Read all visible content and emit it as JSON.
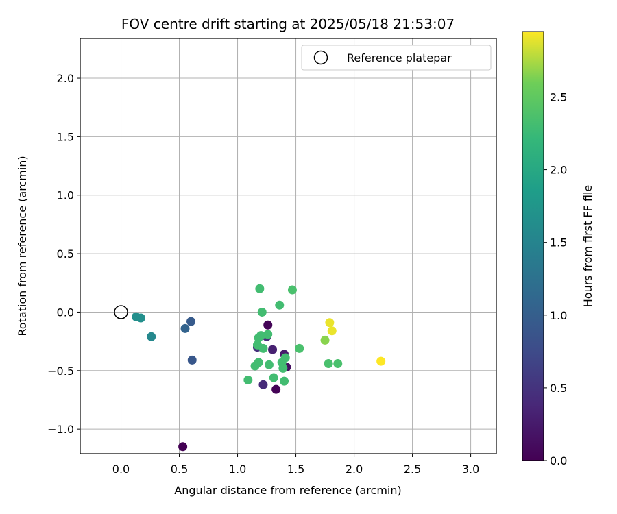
{
  "chart_data": {
    "type": "scatter",
    "title": "FOV centre drift starting at 2025/05/18 21:53:07",
    "xlabel": "Angular distance from reference (arcmin)",
    "ylabel": "Rotation from reference (arcmin)",
    "xlim": [
      -0.35,
      3.22
    ],
    "ylim": [
      -1.21,
      2.34
    ],
    "xticks": [
      0.0,
      0.5,
      1.0,
      1.5,
      2.0,
      2.5,
      3.0
    ],
    "yticks": [
      -1.0,
      -0.5,
      0.0,
      0.5,
      1.0,
      1.5,
      2.0
    ],
    "xtick_labels": [
      "0.0",
      "0.5",
      "1.0",
      "1.5",
      "2.0",
      "2.5",
      "3.0"
    ],
    "ytick_labels": [
      "−1.0",
      "−0.5",
      "0.0",
      "0.5",
      "1.0",
      "1.5",
      "2.0"
    ],
    "grid": true,
    "legend": {
      "position": "top-right",
      "entries": [
        {
          "label": "Reference platepar",
          "marker": "open-circle",
          "x": 0.0,
          "y": 0.0
        }
      ]
    },
    "colorbar": {
      "label": "Hours from first FF file",
      "range": [
        0.0,
        2.95
      ],
      "ticks": [
        0.0,
        0.5,
        1.0,
        1.5,
        2.0,
        2.5
      ],
      "tick_labels": [
        "0.0",
        "0.5",
        "1.0",
        "1.5",
        "2.0",
        "2.5"
      ],
      "colormap": "viridis"
    },
    "points": [
      {
        "x": 0.53,
        "y": -1.15,
        "hours": 0.0
      },
      {
        "x": 1.33,
        "y": -0.66,
        "hours": 0.02
      },
      {
        "x": 1.26,
        "y": -0.11,
        "hours": 0.03
      },
      {
        "x": 1.42,
        "y": -0.47,
        "hours": 0.12
      },
      {
        "x": 1.4,
        "y": -0.36,
        "hours": 0.25
      },
      {
        "x": 1.3,
        "y": -0.32,
        "hours": 0.3
      },
      {
        "x": 1.25,
        "y": -0.21,
        "hours": 0.4
      },
      {
        "x": 1.22,
        "y": -0.62,
        "hours": 0.4
      },
      {
        "x": 1.17,
        "y": -0.3,
        "hours": 0.45
      },
      {
        "x": 0.61,
        "y": -0.41,
        "hours": 0.9
      },
      {
        "x": 0.6,
        "y": -0.08,
        "hours": 0.95
      },
      {
        "x": 0.55,
        "y": -0.14,
        "hours": 1.05
      },
      {
        "x": 0.26,
        "y": -0.21,
        "hours": 1.55
      },
      {
        "x": 0.13,
        "y": -0.04,
        "hours": 1.65
      },
      {
        "x": 0.17,
        "y": -0.05,
        "hours": 1.65
      },
      {
        "x": 1.19,
        "y": 0.2,
        "hours": 2.3
      },
      {
        "x": 1.21,
        "y": 0.0,
        "hours": 2.3
      },
      {
        "x": 1.18,
        "y": -0.22,
        "hours": 2.3
      },
      {
        "x": 1.17,
        "y": -0.28,
        "hours": 2.3
      },
      {
        "x": 1.2,
        "y": -0.2,
        "hours": 2.3
      },
      {
        "x": 1.22,
        "y": -0.31,
        "hours": 2.3
      },
      {
        "x": 1.26,
        "y": -0.19,
        "hours": 2.3
      },
      {
        "x": 1.18,
        "y": -0.43,
        "hours": 2.3
      },
      {
        "x": 1.15,
        "y": -0.46,
        "hours": 2.3
      },
      {
        "x": 1.09,
        "y": -0.58,
        "hours": 2.3
      },
      {
        "x": 1.27,
        "y": -0.45,
        "hours": 2.3
      },
      {
        "x": 1.31,
        "y": -0.56,
        "hours": 2.3
      },
      {
        "x": 1.36,
        "y": 0.06,
        "hours": 2.3
      },
      {
        "x": 1.38,
        "y": -0.43,
        "hours": 2.3
      },
      {
        "x": 1.39,
        "y": -0.48,
        "hours": 2.3
      },
      {
        "x": 1.4,
        "y": -0.59,
        "hours": 2.3
      },
      {
        "x": 1.41,
        "y": -0.39,
        "hours": 2.3
      },
      {
        "x": 1.47,
        "y": 0.19,
        "hours": 2.35
      },
      {
        "x": 1.53,
        "y": -0.31,
        "hours": 2.35
      },
      {
        "x": 1.78,
        "y": -0.44,
        "hours": 2.35
      },
      {
        "x": 1.86,
        "y": -0.44,
        "hours": 2.35
      },
      {
        "x": 1.75,
        "y": -0.24,
        "hours": 2.65
      },
      {
        "x": 1.79,
        "y": -0.09,
        "hours": 2.9
      },
      {
        "x": 1.81,
        "y": -0.16,
        "hours": 2.9
      },
      {
        "x": 2.23,
        "y": -0.42,
        "hours": 2.95
      }
    ]
  }
}
